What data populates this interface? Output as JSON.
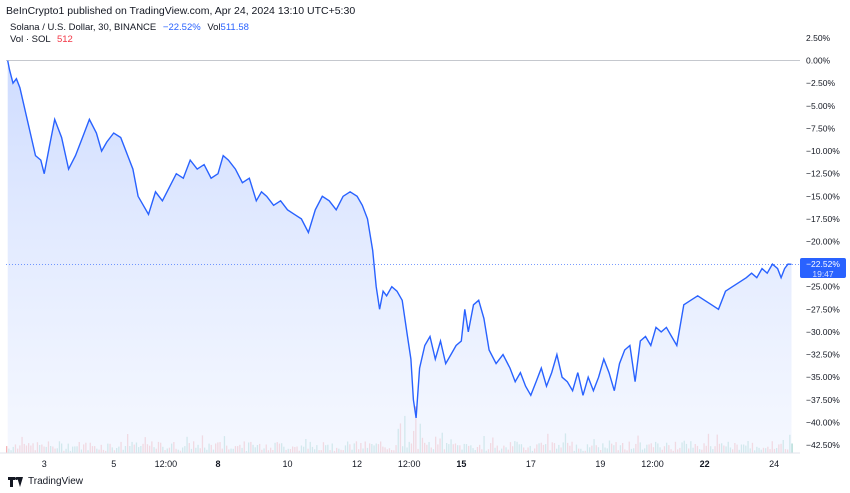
{
  "header": {
    "publisher_text": "BeInCrypto1 published on TradingView.com, Apr 24, 2024 13:10 UTC+5:30"
  },
  "legend": {
    "symbol": "Solana / U.S. Dollar, 30, BINANCE",
    "change": "−22.52%",
    "vol_label": "Vol",
    "vol_value": "511.58",
    "vol_row_label": "Vol · SOL",
    "vol_row_value": "512"
  },
  "price_tag": {
    "value": "−22.52%",
    "time": "19:47"
  },
  "footer": {
    "brand": "TradingView"
  },
  "colors": {
    "line": "#2962ff",
    "area": "#dfe8ff",
    "vol_up": "#a8d8d1",
    "vol_down": "#f6b3b6",
    "grid": "#b2b5be"
  },
  "chart_data": {
    "type": "area",
    "title": "Solana / U.S. Dollar, 30, BINANCE",
    "ylabel": "",
    "ylim": [
      -43.5,
      3.5
    ],
    "y_ticks": [
      "2.50%",
      "0.00%",
      "−2.50%",
      "−5.00%",
      "−7.50%",
      "−10.00%",
      "−12.50%",
      "−15.00%",
      "−17.50%",
      "−20.00%",
      "−22.50%",
      "−25.00%",
      "−27.50%",
      "−30.00%",
      "−32.50%",
      "−35.00%",
      "−37.50%",
      "−40.00%",
      "−42.50%"
    ],
    "y_tick_values": [
      2.5,
      0,
      -2.5,
      -5,
      -7.5,
      -10,
      -12.5,
      -15,
      -17.5,
      -20,
      -22.5,
      -25,
      -27.5,
      -30,
      -32.5,
      -35,
      -37.5,
      -40,
      -42.5
    ],
    "x_ticks": [
      {
        "label": "3",
        "day": 3
      },
      {
        "label": "5",
        "day": 5
      },
      {
        "label": "12:00",
        "day": 6.5
      },
      {
        "label": "8",
        "day": 8
      },
      {
        "label": "10",
        "day": 10
      },
      {
        "label": "12",
        "day": 12
      },
      {
        "label": "12:00",
        "day": 13.5
      },
      {
        "label": "15",
        "day": 15
      },
      {
        "label": "17",
        "day": 17
      },
      {
        "label": "19",
        "day": 19
      },
      {
        "label": "12:00",
        "day": 20.5
      },
      {
        "label": "22",
        "day": 22
      },
      {
        "label": "24",
        "day": 24
      }
    ],
    "xlim": [
      1.9,
      24.6
    ],
    "series": [
      {
        "x": [
          1.95,
          2.0,
          2.1,
          2.2,
          2.3,
          2.45,
          2.6,
          2.75,
          2.9,
          3.0,
          3.15,
          3.3,
          3.5,
          3.7,
          3.9,
          4.1,
          4.3,
          4.5,
          4.65,
          4.8,
          5.0,
          5.2,
          5.4,
          5.55,
          5.7,
          5.85,
          6.0,
          6.2,
          6.4,
          6.6,
          6.8,
          7.0,
          7.2,
          7.4,
          7.6,
          7.8,
          8.0,
          8.15,
          8.3,
          8.5,
          8.7,
          8.9,
          9.1,
          9.25,
          9.4,
          9.6,
          9.8,
          10.0,
          10.2,
          10.4,
          10.6,
          10.8,
          11.0,
          11.2,
          11.4,
          11.6,
          11.8,
          12.0,
          12.15,
          12.3,
          12.45,
          12.55,
          12.65,
          12.75,
          12.85,
          13.0,
          13.15,
          13.3,
          13.45,
          13.55,
          13.62,
          13.7,
          13.8,
          13.95,
          14.1,
          14.25,
          14.4,
          14.55,
          14.7,
          14.85,
          15.0,
          15.1,
          15.2,
          15.35,
          15.5,
          15.65,
          15.8,
          16.0,
          16.2,
          16.4,
          16.55,
          16.7,
          16.85,
          17.0,
          17.15,
          17.3,
          17.45,
          17.6,
          17.75,
          17.9,
          18.05,
          18.2,
          18.35,
          18.5,
          18.65,
          18.8,
          18.95,
          19.1,
          19.25,
          19.4,
          19.55,
          19.7,
          19.85,
          20.0,
          20.15,
          20.3,
          20.45,
          20.6,
          20.75,
          20.9,
          21.05,
          21.2,
          21.4,
          21.6,
          21.8,
          22.0,
          22.2,
          22.4,
          22.6,
          22.8,
          23.0,
          23.2,
          23.35,
          23.5,
          23.65,
          23.8,
          23.95,
          24.1,
          24.2,
          24.3,
          24.4,
          24.5
        ],
        "y": [
          0.0,
          -1.0,
          -2.5,
          -2.0,
          -3.0,
          -5.5,
          -8.0,
          -10.5,
          -11.0,
          -12.5,
          -9.5,
          -6.5,
          -8.5,
          -12.0,
          -10.5,
          -8.5,
          -6.5,
          -8.0,
          -10.0,
          -9.0,
          -8.0,
          -8.5,
          -10.5,
          -12.0,
          -15.0,
          -16.0,
          -17.0,
          -14.5,
          -15.5,
          -14.0,
          -12.5,
          -13.0,
          -11.0,
          -12.0,
          -11.5,
          -13.0,
          -12.5,
          -10.5,
          -11.0,
          -12.0,
          -13.5,
          -13.0,
          -15.5,
          -14.5,
          -15.0,
          -16.0,
          -15.5,
          -16.5,
          -17.0,
          -17.5,
          -19.0,
          -16.5,
          -15.0,
          -15.5,
          -16.5,
          -15.0,
          -14.5,
          -15.0,
          -16.0,
          -17.5,
          -21.0,
          -25.0,
          -27.5,
          -25.5,
          -26.0,
          -25.0,
          -25.5,
          -26.5,
          -30.5,
          -33.0,
          -37.5,
          -39.5,
          -34.0,
          -31.5,
          -30.5,
          -33.0,
          -31.0,
          -33.5,
          -32.5,
          -31.5,
          -31.0,
          -27.5,
          -30.0,
          -27.0,
          -26.5,
          -28.5,
          -32.0,
          -33.5,
          -32.5,
          -34.0,
          -35.5,
          -34.5,
          -36.0,
          -37.0,
          -35.5,
          -34.0,
          -36.0,
          -34.5,
          -32.5,
          -35.0,
          -35.5,
          -36.5,
          -34.5,
          -37.0,
          -35.0,
          -36.5,
          -35.0,
          -33.0,
          -34.5,
          -36.5,
          -33.5,
          -32.0,
          -31.5,
          -35.5,
          -31.0,
          -30.5,
          -31.5,
          -29.5,
          -30.0,
          -29.5,
          -30.5,
          -31.5,
          -27.0,
          -26.5,
          -26.0,
          -26.5,
          -27.0,
          -27.5,
          -25.5,
          -25.0,
          -24.5,
          -24.0,
          -23.5,
          -24.0,
          -23.0,
          -23.5,
          -22.5,
          -23.0,
          -24.0,
          -23.0,
          -22.5,
          -22.52
        ]
      }
    ],
    "grid": false,
    "reference_line": 0
  }
}
